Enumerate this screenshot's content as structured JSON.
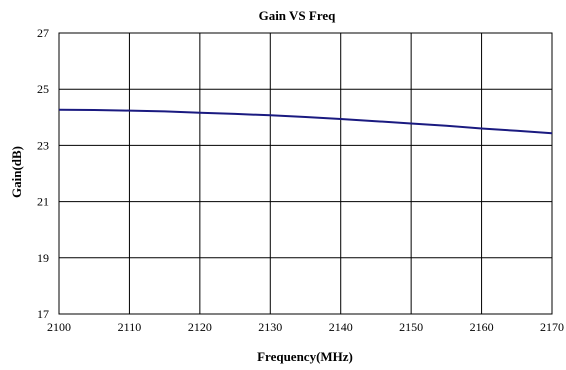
{
  "chart_data": {
    "type": "line",
    "title": "Gain VS Freq",
    "xlabel": "Frequency(MHz)",
    "ylabel": "Gain(dB)",
    "xlim": [
      2100,
      2170
    ],
    "ylim": [
      17,
      27
    ],
    "x_ticks": [
      2100,
      2110,
      2120,
      2130,
      2140,
      2150,
      2160,
      2170
    ],
    "y_ticks": [
      17,
      19,
      21,
      23,
      25,
      27
    ],
    "grid": true,
    "legend": "none",
    "series": [
      {
        "color": "#1a1a80",
        "x": [
          2100,
          2105,
          2110,
          2115,
          2120,
          2125,
          2130,
          2135,
          2140,
          2145,
          2150,
          2155,
          2160,
          2165,
          2170
        ],
        "y": [
          24.27,
          24.26,
          24.24,
          24.21,
          24.16,
          24.12,
          24.07,
          24.01,
          23.94,
          23.86,
          23.78,
          23.7,
          23.6,
          23.52,
          23.43
        ]
      }
    ]
  }
}
